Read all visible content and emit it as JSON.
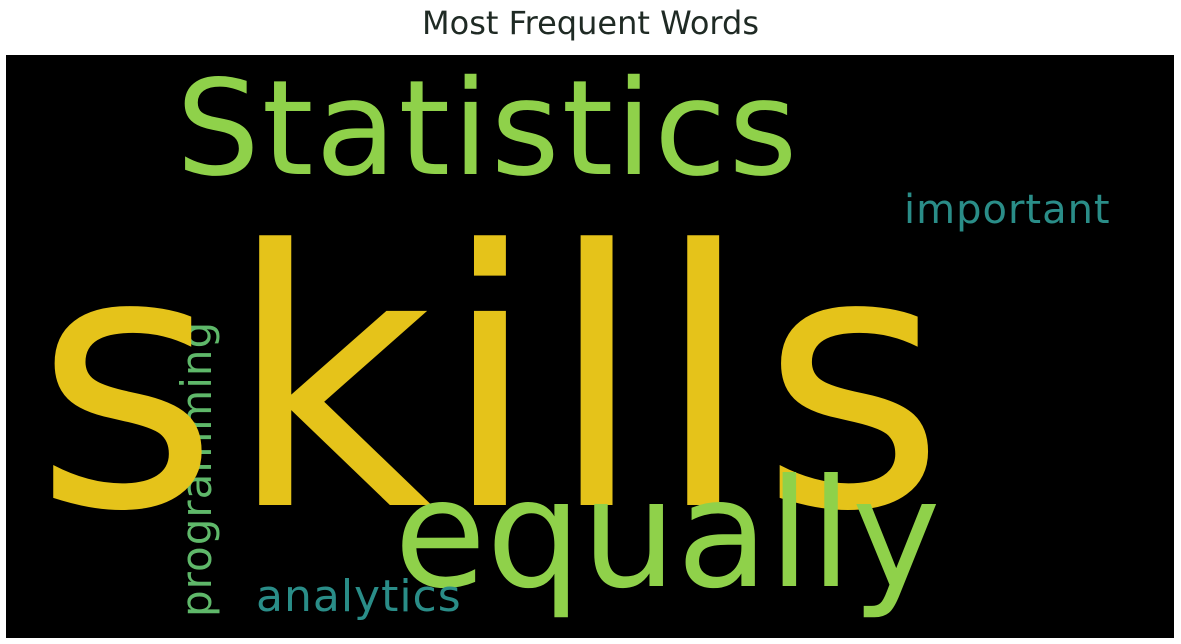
{
  "title": "Most Frequent Words",
  "background_color": "#000000",
  "words": {
    "skills": {
      "text": "skills",
      "color": "#e5c31a"
    },
    "statistics": {
      "text": "Statistics",
      "color": "#8fd14a"
    },
    "equally": {
      "text": "equally",
      "color": "#8fd14a"
    },
    "important": {
      "text": "important",
      "color": "#2a8d88"
    },
    "analytics": {
      "text": "analytics",
      "color": "#2a8d88"
    },
    "programming": {
      "text": "programming",
      "color": "#5fb86a"
    }
  }
}
